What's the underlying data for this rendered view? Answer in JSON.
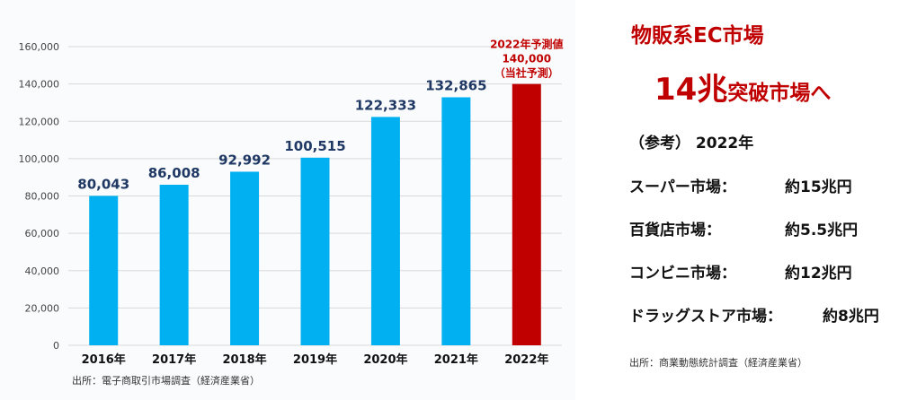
{
  "chart_data": {
    "type": "bar",
    "categories": [
      "2016年",
      "2017年",
      "2018年",
      "2019年",
      "2020年",
      "2021年",
      "2022年"
    ],
    "values": [
      80043,
      86008,
      92992,
      100515,
      122333,
      132865,
      140000
    ],
    "value_labels": [
      "80,043",
      "86,008",
      "92,992",
      "100,515",
      "122,333",
      "132,865",
      ""
    ],
    "yticks": [
      "0",
      "20,000",
      "40,000",
      "60,000",
      "80,000",
      "100,000",
      "120,000",
      "140,000",
      "160,000"
    ],
    "ylim": [
      0,
      160000
    ],
    "grid": true,
    "bar_color": "#00b0f0",
    "forecast_color": "#c00000",
    "forecast_annotation": [
      "2022年予測値",
      "140,000",
      "（当社予測）"
    ]
  },
  "source_left": "出所：電子商取引市場調査（経済産業省）",
  "headline": {
    "line1": "物販系EC市場",
    "line2_big": "14兆",
    "line2_small": "突破市場へ"
  },
  "reference": {
    "title": "（参考） 2022年",
    "rows": [
      {
        "name": "スーパー市場：",
        "value": "約15兆円"
      },
      {
        "name": "百貨店市場：",
        "value": "約5.5兆円"
      },
      {
        "name": "コンビニ市場：",
        "value": "約12兆円"
      },
      {
        "name": "ドラッグストア市場：",
        "value": "約8兆円"
      }
    ]
  },
  "source_right": "出所：商業動態統計調査（経済産業省）"
}
